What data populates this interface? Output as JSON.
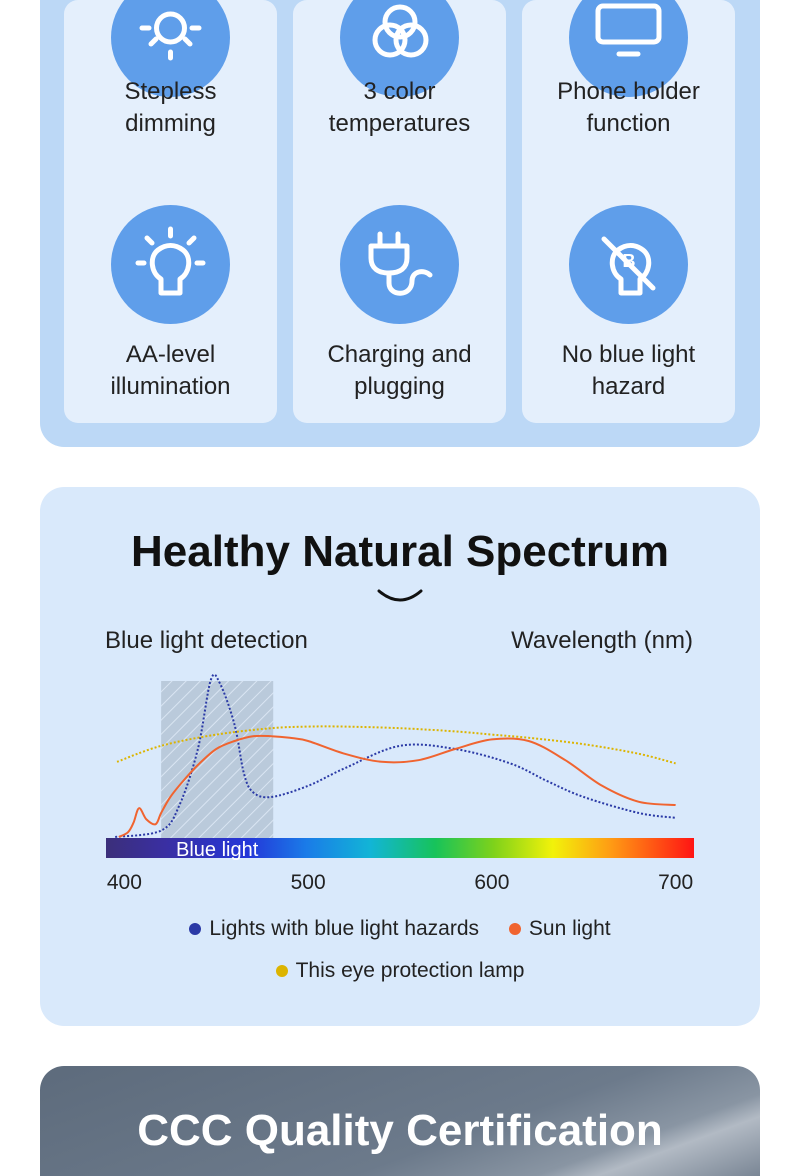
{
  "features": [
    {
      "label_line1": "Stepless",
      "label_line2": "dimming",
      "icon": "sun-dimming-icon"
    },
    {
      "label_line1": "3 color",
      "label_line2": "temperatures",
      "icon": "color-circles-icon"
    },
    {
      "label_line1": "Phone holder",
      "label_line2": "function",
      "icon": "monitor-icon"
    },
    {
      "label_line1": "AA-level",
      "label_line2": "illumination",
      "icon": "lightbulb-icon"
    },
    {
      "label_line1": "Charging and",
      "label_line2": "plugging",
      "icon": "plug-icon"
    },
    {
      "label_line1": "No blue light",
      "label_line2": "hazard",
      "icon": "no-blue-light-icon"
    }
  ],
  "spectrum": {
    "title": "Healthy Natural Spectrum",
    "left_label": "Blue light detection",
    "right_label": "Wavelength (nm)",
    "band_label": "Blue light",
    "legend": [
      {
        "label": "Lights with blue light hazards",
        "color": "#2b3aa6"
      },
      {
        "label": "Sun light",
        "color": "#f06430"
      },
      {
        "label": "This eye protection lamp",
        "color": "#dcb400"
      }
    ]
  },
  "chart_data": {
    "type": "line",
    "xlabel": "Wavelength (nm)",
    "ylabel": "Blue light detection",
    "xlim": [
      390,
      710
    ],
    "ylim": [
      0,
      100
    ],
    "x_ticks": [
      400,
      500,
      600,
      700
    ],
    "highlight_band": {
      "label": "Blue light",
      "x": [
        420,
        481
      ]
    },
    "series": [
      {
        "name": "Lights with blue light hazards",
        "color": "#2b3aa6",
        "style": "dotted",
        "x": [
          395,
          420,
          430,
          440,
          447,
          452,
          460,
          465,
          470,
          480,
          500,
          520,
          550,
          580,
          610,
          630,
          650,
          680,
          700
        ],
        "y": [
          0,
          4,
          20,
          55,
          98,
          96,
          70,
          40,
          28,
          25,
          32,
          43,
          57,
          55,
          46,
          35,
          25,
          15,
          12
        ]
      },
      {
        "name": "Sun light",
        "color": "#f06430",
        "style": "solid",
        "x": [
          397,
          402,
          405,
          408,
          412,
          417,
          420,
          425,
          432,
          440,
          450,
          460,
          470,
          480,
          490,
          500,
          520,
          540,
          560,
          580,
          600,
          620,
          640,
          660,
          680,
          700
        ],
        "y": [
          0,
          3,
          9,
          18,
          11,
          8,
          15,
          25,
          35,
          45,
          55,
          60,
          63,
          63,
          62,
          60,
          52,
          47,
          48,
          55,
          61,
          60,
          48,
          32,
          22,
          20
        ]
      },
      {
        "name": "This eye protection lamp",
        "color": "#dcb400",
        "style": "dotted",
        "x": [
          396,
          420,
          450,
          480,
          500,
          520,
          550,
          580,
          600,
          620,
          650,
          680,
          700
        ],
        "y": [
          47,
          57,
          64,
          68,
          69,
          69,
          68,
          66,
          64,
          62,
          58,
          52,
          46
        ]
      }
    ]
  },
  "ccc": {
    "title": "CCC Quality Certification"
  },
  "colors": {
    "panel_bg": "#bcd8f6",
    "card_bg": "#e4effc",
    "icon_circle": "#5f9eea",
    "spectrum_bg": "#d9e9fb",
    "ccc_bg": "#6c7a8b"
  }
}
